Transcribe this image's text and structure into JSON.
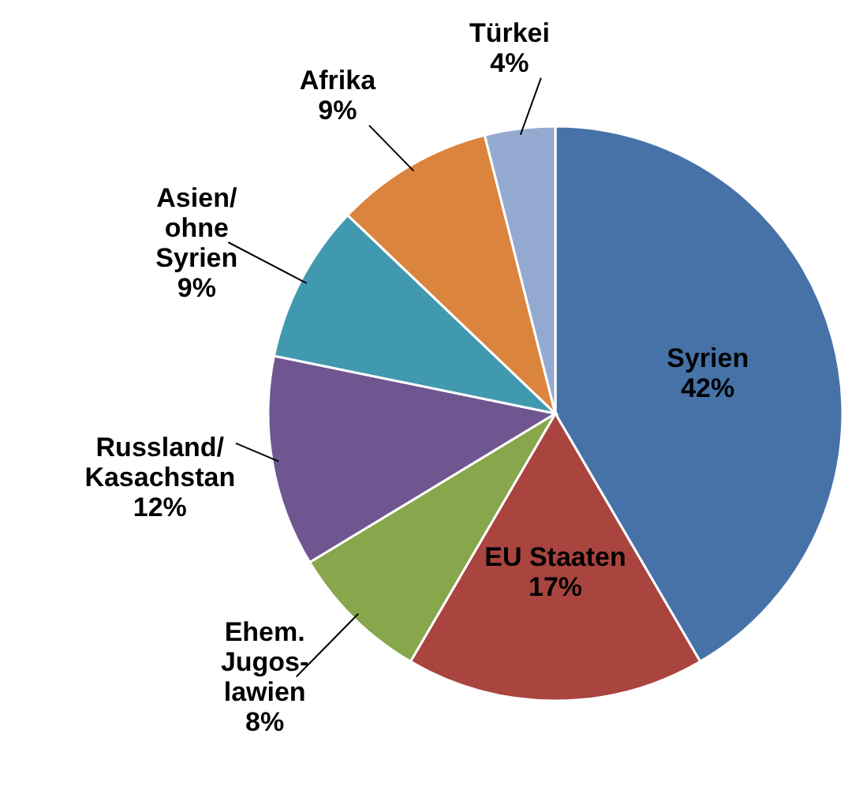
{
  "chart_data": {
    "type": "pie",
    "categories": [
      "Syrien",
      "EU Staaten",
      "Ehem.\nJugos-\nlawien",
      "Russland/\nKasachstan",
      "Asien/\nohne\nSyrien",
      "Afrika",
      "Türkei"
    ],
    "values": [
      42,
      17,
      8,
      12,
      9,
      9,
      4
    ],
    "colors": [
      "#4672a8",
      "#a9443f",
      "#88a64c",
      "#6f5690",
      "#4199b0",
      "#db843d",
      "#94a9cf"
    ],
    "value_labels": [
      "42%",
      "17%",
      "8%",
      "12%",
      "9%",
      "9%",
      "4%"
    ]
  }
}
